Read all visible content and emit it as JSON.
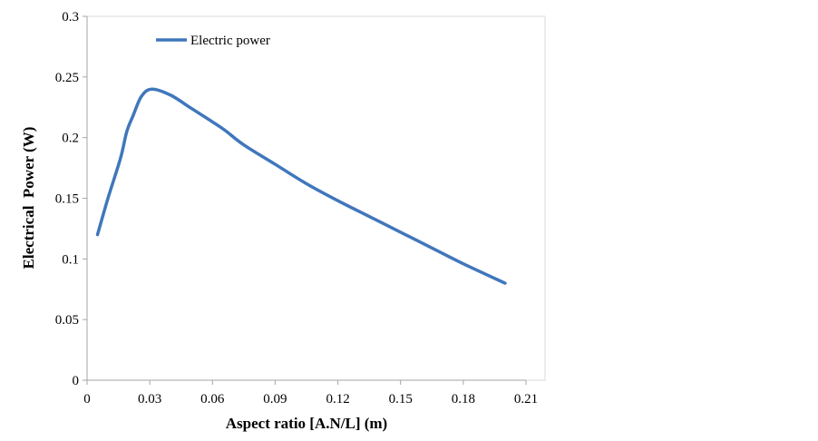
{
  "chart_data": {
    "type": "line",
    "title": "",
    "xlabel": "Aspect ratio [A.N/L] (m)",
    "ylabel": "Electrical  Power (W)",
    "xlim": [
      0,
      0.21
    ],
    "ylim": [
      0,
      0.3
    ],
    "xticks": [
      "0",
      "0.03",
      "0.06",
      "0.09",
      "0.12",
      "0.15",
      "0.18",
      "0.21"
    ],
    "yticks": [
      "0",
      "0.05",
      "0.1",
      "0.15",
      "0.2",
      "0.25",
      "0.3"
    ],
    "grid": false,
    "legend_position": "top-left",
    "series": [
      {
        "name": "Electric power",
        "color": "#3f77bc",
        "x": [
          0.005,
          0.01,
          0.016,
          0.019,
          0.022,
          0.026,
          0.031,
          0.04,
          0.05,
          0.06,
          0.066,
          0.075,
          0.09,
          0.105,
          0.12,
          0.135,
          0.15,
          0.165,
          0.18,
          0.2
        ],
        "y": [
          0.12,
          0.15,
          0.183,
          0.205,
          0.218,
          0.234,
          0.24,
          0.235,
          0.224,
          0.213,
          0.206,
          0.194,
          0.178,
          0.162,
          0.148,
          0.135,
          0.122,
          0.109,
          0.096,
          0.08
        ]
      }
    ]
  }
}
